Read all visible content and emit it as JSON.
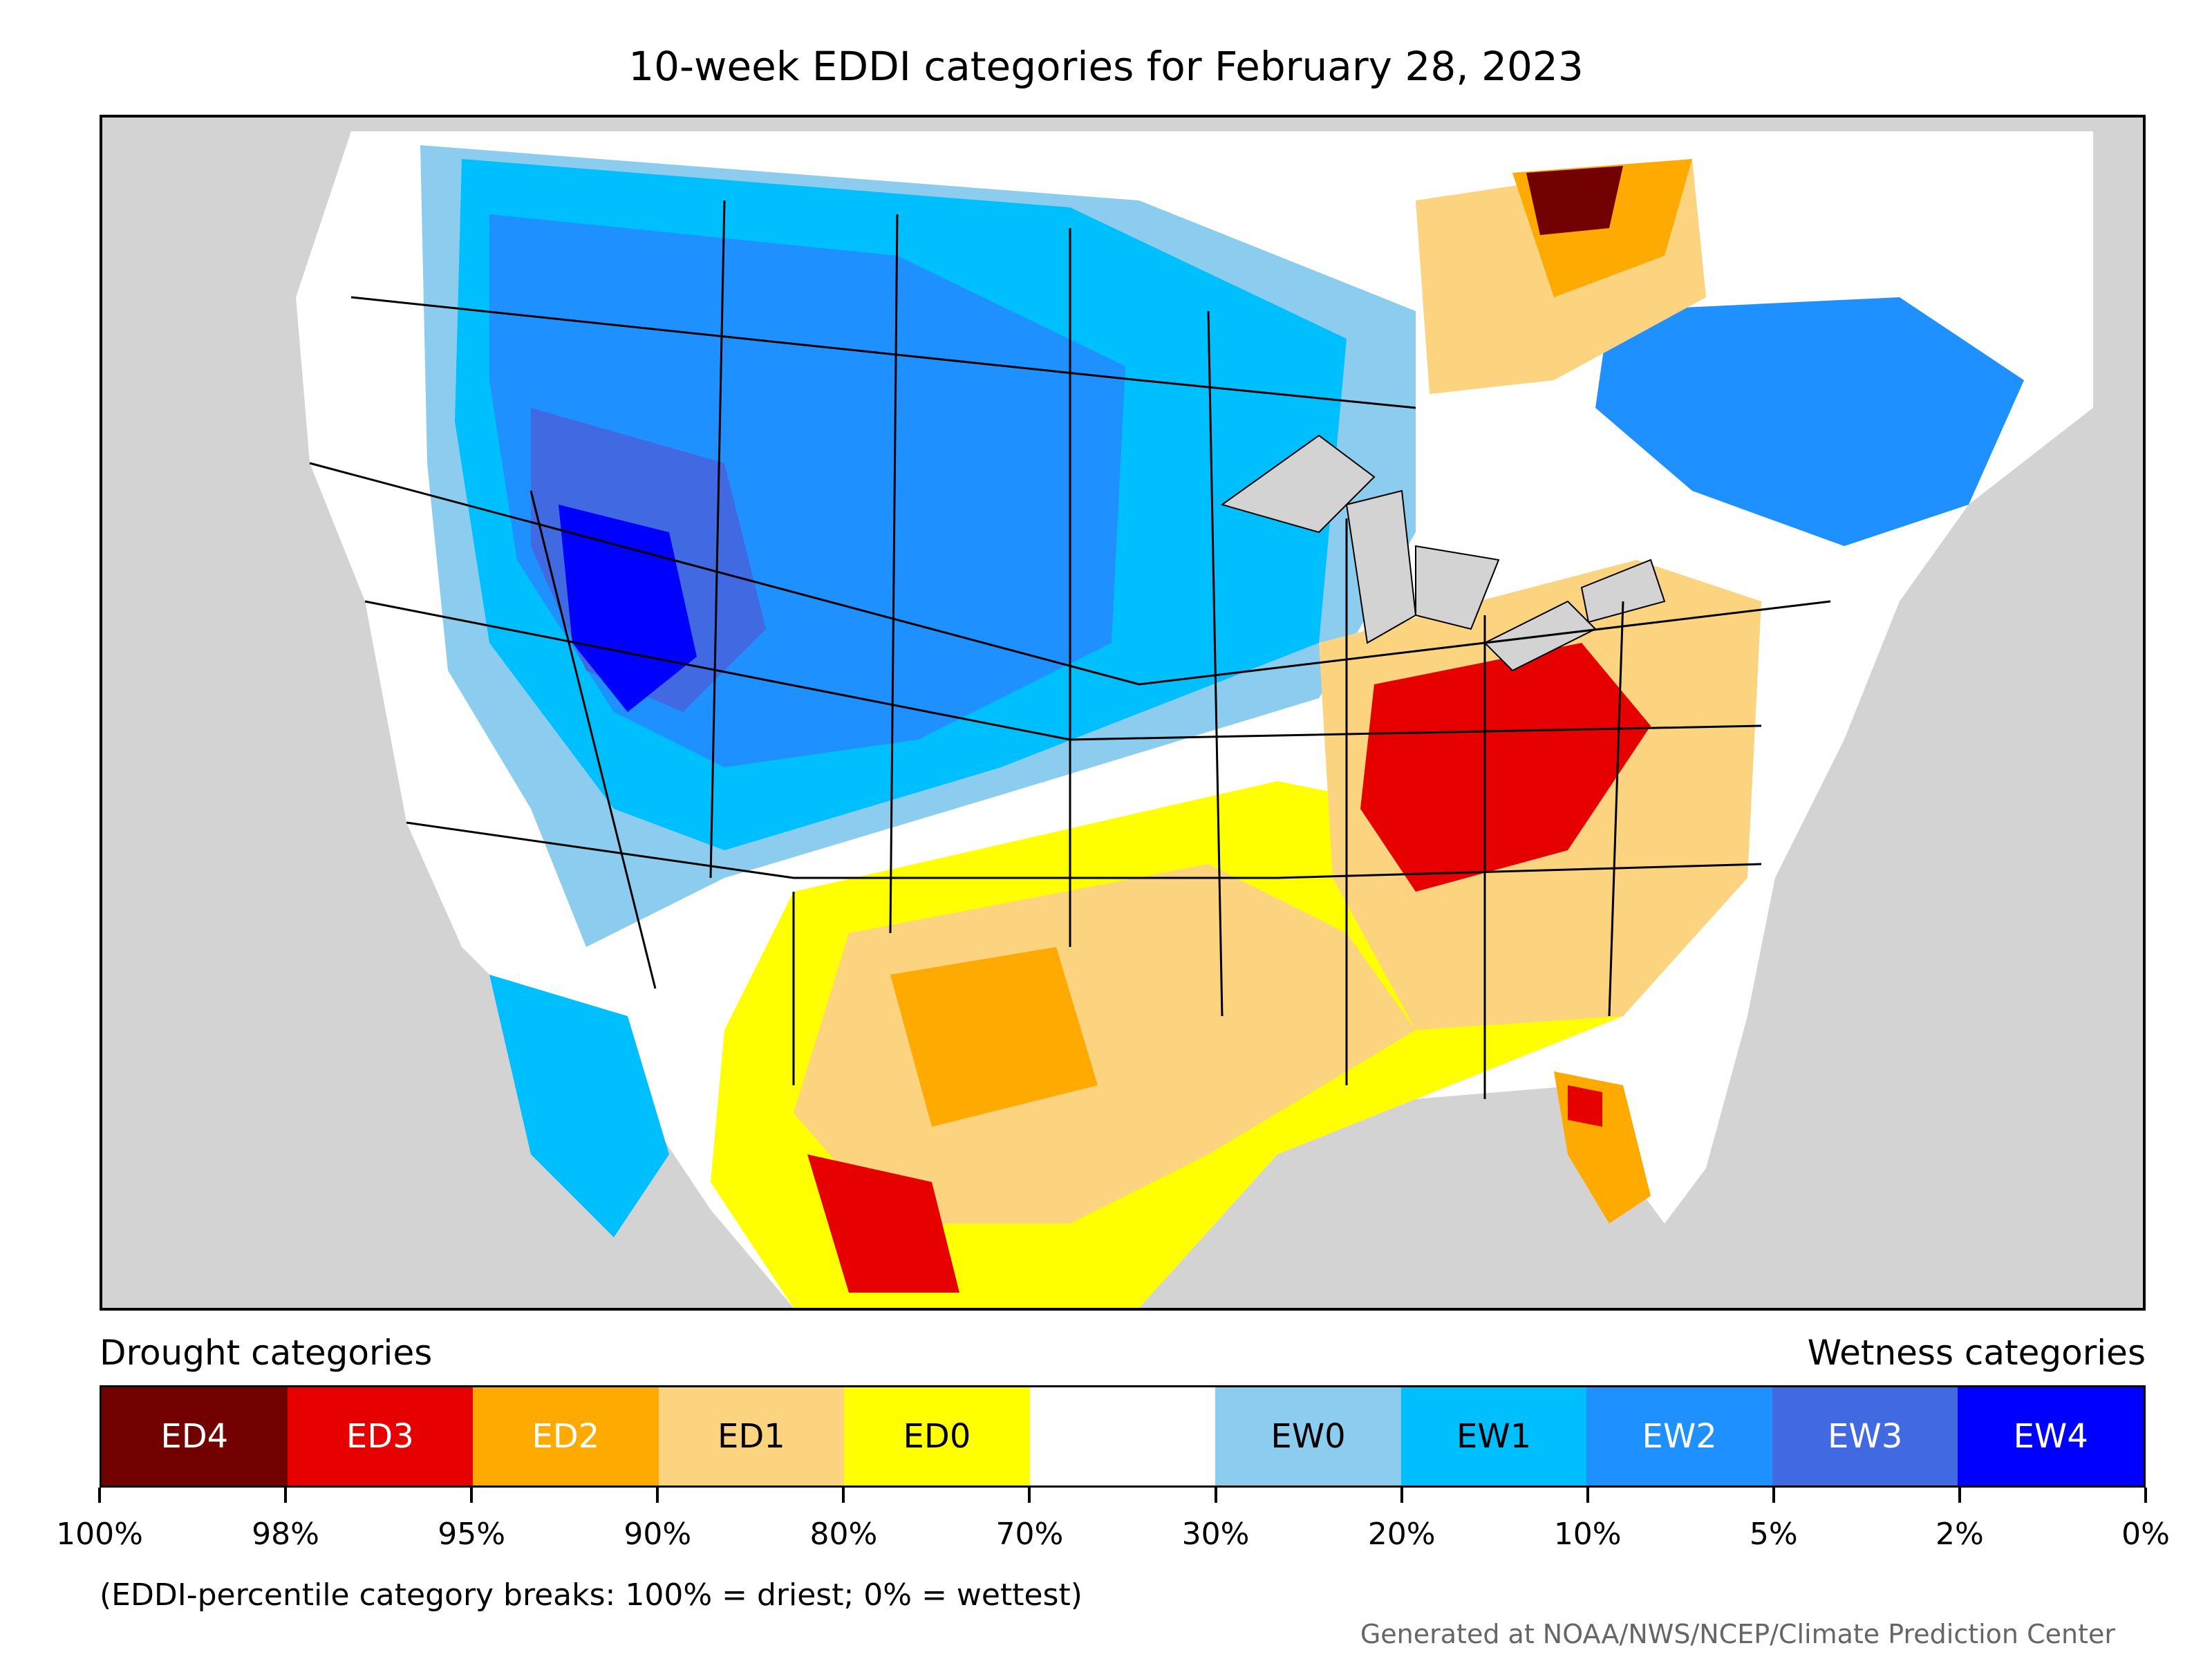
{
  "title": "10-week EDDI categories for February 28, 2023",
  "drought_label": "Drought categories",
  "wetness_label": "Wetness categories",
  "legend": [
    {
      "label": "ED4",
      "color": "#730000",
      "text_color": "#ffffff"
    },
    {
      "label": "ED3",
      "color": "#e60000",
      "text_color": "#ffffff"
    },
    {
      "label": "ED2",
      "color": "#ffaa00",
      "text_color": "#ffffff"
    },
    {
      "label": "ED1",
      "color": "#fcd37f",
      "text_color": "#000000"
    },
    {
      "label": "ED0",
      "color": "#ffff00",
      "text_color": "#000000"
    },
    {
      "label": "",
      "color": "#ffffff",
      "text_color": "#000000"
    },
    {
      "label": "EW0",
      "color": "#8ccdef",
      "text_color": "#000000"
    },
    {
      "label": "EW1",
      "color": "#00bfff",
      "text_color": "#000000"
    },
    {
      "label": "EW2",
      "color": "#1e90ff",
      "text_color": "#ffffff"
    },
    {
      "label": "EW3",
      "color": "#4169e1",
      "text_color": "#ffffff"
    },
    {
      "label": "EW4",
      "color": "#0000ff",
      "text_color": "#ffffff"
    }
  ],
  "ticks": [
    "100%",
    "98%",
    "95%",
    "90%",
    "80%",
    "70%",
    "30%",
    "20%",
    "10%",
    "5%",
    "2%",
    "0%"
  ],
  "footnote": "(EDDI-percentile category breaks: 100% = driest; 0% = wettest)",
  "credit": "Generated at NOAA/NWS/NCEP/Climate Prediction Center"
}
